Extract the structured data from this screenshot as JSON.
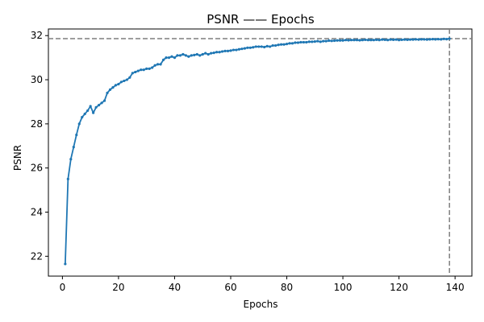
{
  "chart_data": {
    "type": "line",
    "title": "PSNR —— Epochs",
    "xlabel": "Epochs",
    "ylabel": "PSNR",
    "xlim": [
      -5,
      146
    ],
    "ylim": [
      21.1,
      32.3
    ],
    "xticks": [
      0,
      20,
      40,
      60,
      80,
      100,
      120,
      140
    ],
    "yticks": [
      22,
      24,
      26,
      28,
      30,
      32
    ],
    "grid": false,
    "legend": "none",
    "reference_lines": {
      "best_value": 31.86,
      "best_epoch": 138
    },
    "colors": {
      "series": "#1f77b4",
      "reference": "#7f7f7f"
    },
    "series": [
      {
        "x": [
          1,
          2,
          3,
          4,
          5,
          6,
          7,
          8,
          9,
          10,
          11,
          12,
          13,
          14,
          15,
          16,
          17,
          18,
          19,
          20,
          21,
          22,
          23,
          24,
          25,
          26,
          27,
          28,
          29,
          30,
          31,
          32,
          33,
          34,
          35,
          36,
          37,
          38,
          39,
          40,
          41,
          42,
          43,
          44,
          45,
          46,
          47,
          48,
          49,
          50,
          51,
          52,
          53,
          54,
          55,
          56,
          57,
          58,
          59,
          60,
          61,
          62,
          63,
          64,
          65,
          66,
          67,
          68,
          69,
          70,
          71,
          72,
          73,
          74,
          75,
          76,
          77,
          78,
          79,
          80,
          81,
          82,
          83,
          84,
          85,
          86,
          87,
          88,
          89,
          90,
          91,
          92,
          93,
          94,
          95,
          96,
          97,
          98,
          99,
          100,
          101,
          102,
          103,
          104,
          105,
          106,
          107,
          108,
          109,
          110,
          111,
          112,
          113,
          114,
          115,
          116,
          117,
          118,
          119,
          120,
          121,
          122,
          123,
          124,
          125,
          126,
          127,
          128,
          129,
          130,
          131,
          132,
          133,
          134,
          135,
          136,
          137,
          138
        ],
        "values": [
          21.65,
          25.5,
          26.4,
          26.95,
          27.5,
          28.0,
          28.3,
          28.45,
          28.6,
          28.8,
          28.5,
          28.75,
          28.85,
          28.95,
          29.05,
          29.4,
          29.55,
          29.65,
          29.75,
          29.8,
          29.9,
          29.95,
          30.0,
          30.1,
          30.3,
          30.35,
          30.4,
          30.45,
          30.45,
          30.5,
          30.5,
          30.55,
          30.65,
          30.7,
          30.7,
          30.9,
          31.0,
          31.0,
          31.05,
          31.0,
          31.1,
          31.1,
          31.15,
          31.1,
          31.05,
          31.1,
          31.12,
          31.15,
          31.1,
          31.15,
          31.2,
          31.15,
          31.2,
          31.22,
          31.25,
          31.25,
          31.28,
          31.3,
          31.3,
          31.32,
          31.35,
          31.35,
          31.38,
          31.4,
          31.42,
          31.45,
          31.45,
          31.47,
          31.5,
          31.5,
          31.5,
          31.48,
          31.52,
          31.5,
          31.55,
          31.55,
          31.58,
          31.6,
          31.6,
          31.62,
          31.65,
          31.65,
          31.68,
          31.68,
          31.7,
          31.7,
          31.7,
          31.72,
          31.72,
          31.73,
          31.75,
          31.72,
          31.75,
          31.75,
          31.77,
          31.76,
          31.77,
          31.78,
          31.78,
          31.78,
          31.8,
          31.79,
          31.8,
          31.8,
          31.8,
          31.79,
          31.8,
          31.81,
          31.8,
          31.8,
          31.8,
          31.81,
          31.8,
          31.82,
          31.81,
          31.8,
          31.82,
          31.81,
          31.82,
          31.8,
          31.81,
          31.82,
          31.81,
          31.82,
          31.82,
          31.83,
          31.82,
          31.83,
          31.83,
          31.82,
          31.83,
          31.84,
          31.83,
          31.84,
          31.83,
          31.85,
          31.84,
          31.86
        ]
      }
    ]
  }
}
